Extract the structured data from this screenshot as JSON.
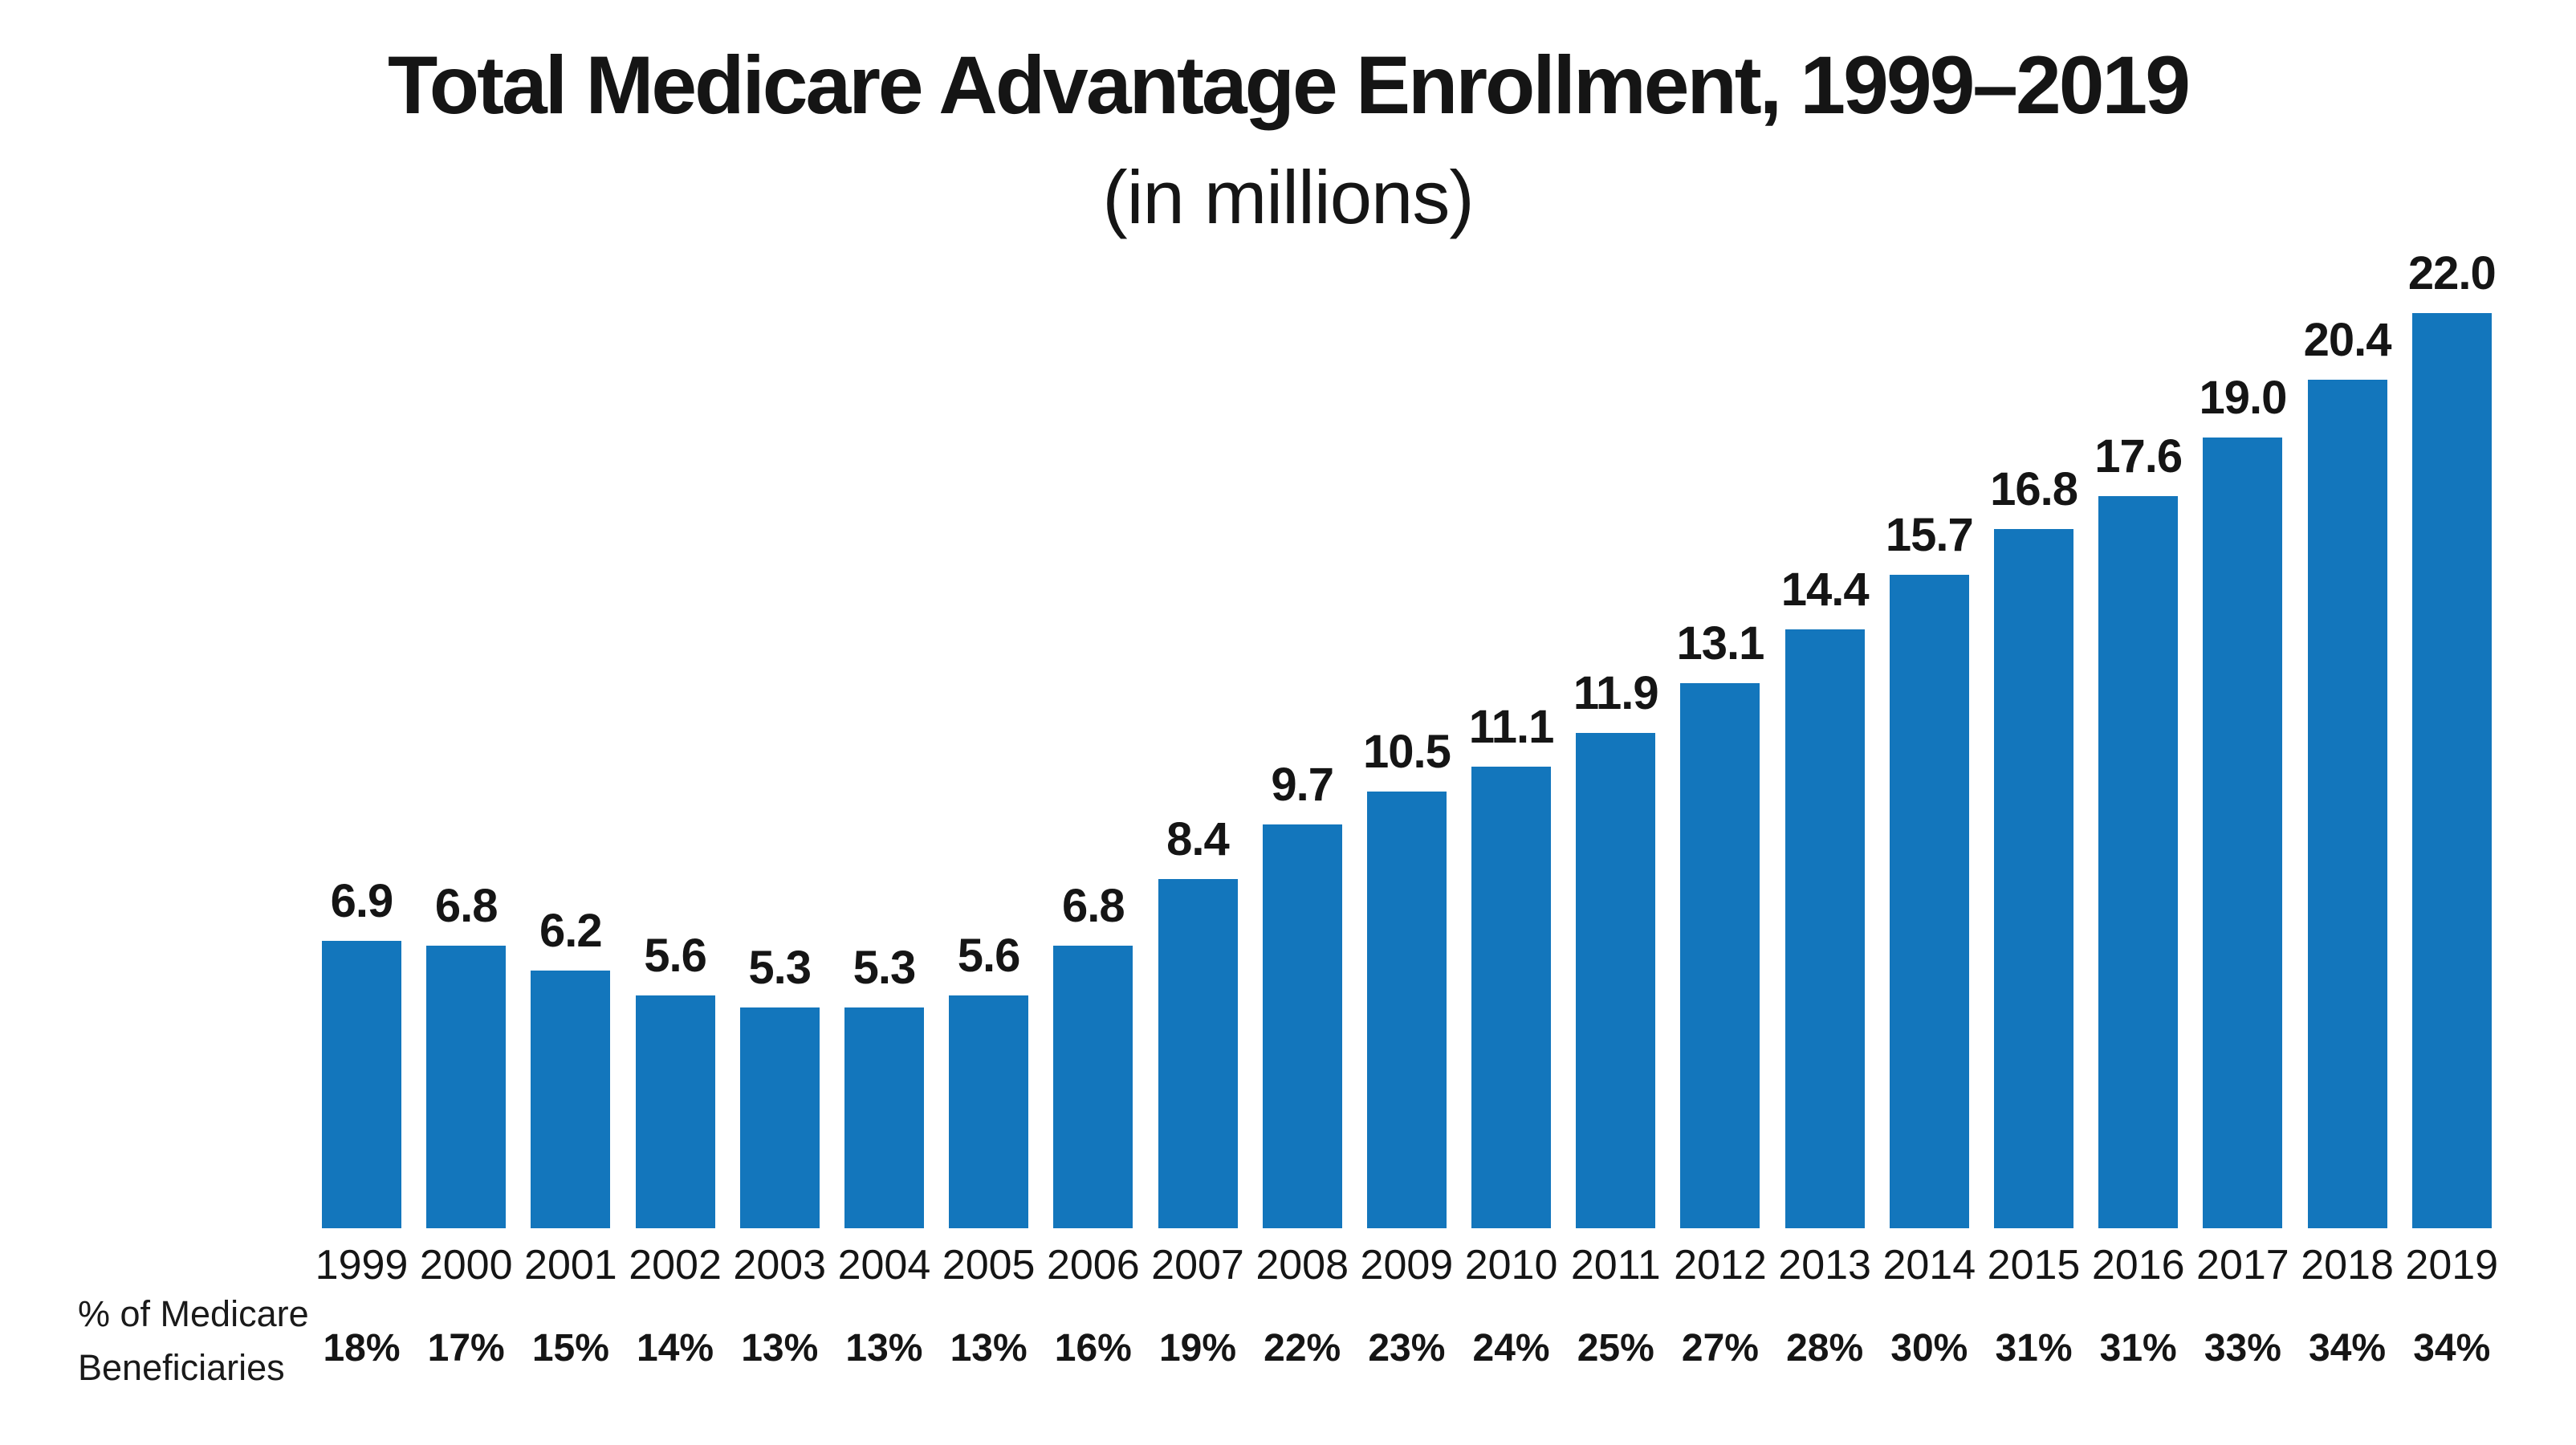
{
  "page": {
    "title": "Total Medicare Advantage Enrollment, 1999–2019",
    "subtitle": "(in millions)",
    "row_label_line1": "% of Medicare",
    "row_label_line2": "Beneficiaries"
  },
  "colors": {
    "bar": "#1376bc",
    "text": "#151515",
    "background": "#ffffff"
  },
  "chart_data": {
    "type": "bar",
    "title": "Total Medicare Advantage Enrollment, 1999–2019",
    "subtitle": "(in millions)",
    "categories": [
      "1999",
      "2000",
      "2001",
      "2002",
      "2003",
      "2004",
      "2005",
      "2006",
      "2007",
      "2008",
      "2009",
      "2010",
      "2011",
      "2012",
      "2013",
      "2014",
      "2015",
      "2016",
      "2017",
      "2018",
      "2019"
    ],
    "values": [
      6.9,
      6.8,
      6.2,
      5.6,
      5.3,
      5.3,
      5.6,
      6.8,
      8.4,
      9.7,
      10.5,
      11.1,
      11.9,
      13.1,
      14.4,
      15.7,
      16.8,
      17.6,
      19.0,
      20.4,
      22.0
    ],
    "value_labels": [
      "6.9",
      "6.8",
      "6.2",
      "5.6",
      "5.3",
      "5.3",
      "5.6",
      "6.8",
      "8.4",
      "9.7",
      "10.5",
      "11.1",
      "11.9",
      "13.1",
      "14.4",
      "15.7",
      "16.8",
      "17.6",
      "19.0",
      "20.4",
      "22.0"
    ],
    "pct_row_label": "% of Medicare Beneficiaries",
    "pct_of_beneficiaries": [
      "18%",
      "17%",
      "15%",
      "14%",
      "13%",
      "13%",
      "13%",
      "16%",
      "19%",
      "22%",
      "23%",
      "24%",
      "25%",
      "27%",
      "28%",
      "30%",
      "31%",
      "31%",
      "33%",
      "34%",
      "34%"
    ],
    "xlabel": "",
    "ylabel": "",
    "ylim": [
      0,
      22
    ],
    "grid": false,
    "legend": false,
    "bar_color": "#1376bc",
    "data_labels": "above-bars"
  }
}
